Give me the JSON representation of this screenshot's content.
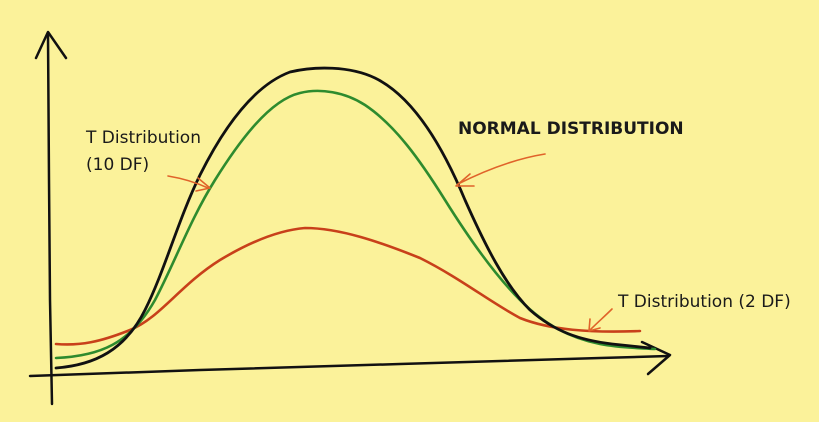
{
  "labels": {
    "t10_line1": "T Distribution",
    "t10_line2": "(10 DF)",
    "normal": "NORMAL DISTRIBUTION",
    "t2": "T Distribution (2 DF)"
  },
  "colors": {
    "background": "#fbf29a",
    "normal_curve": "#111111",
    "t10_curve": "#2e8b2e",
    "t2_curve": "#c8401a",
    "pointer_arrow": "#e0632a"
  },
  "icons": {
    "axis_arrow": "arrow-head"
  }
}
